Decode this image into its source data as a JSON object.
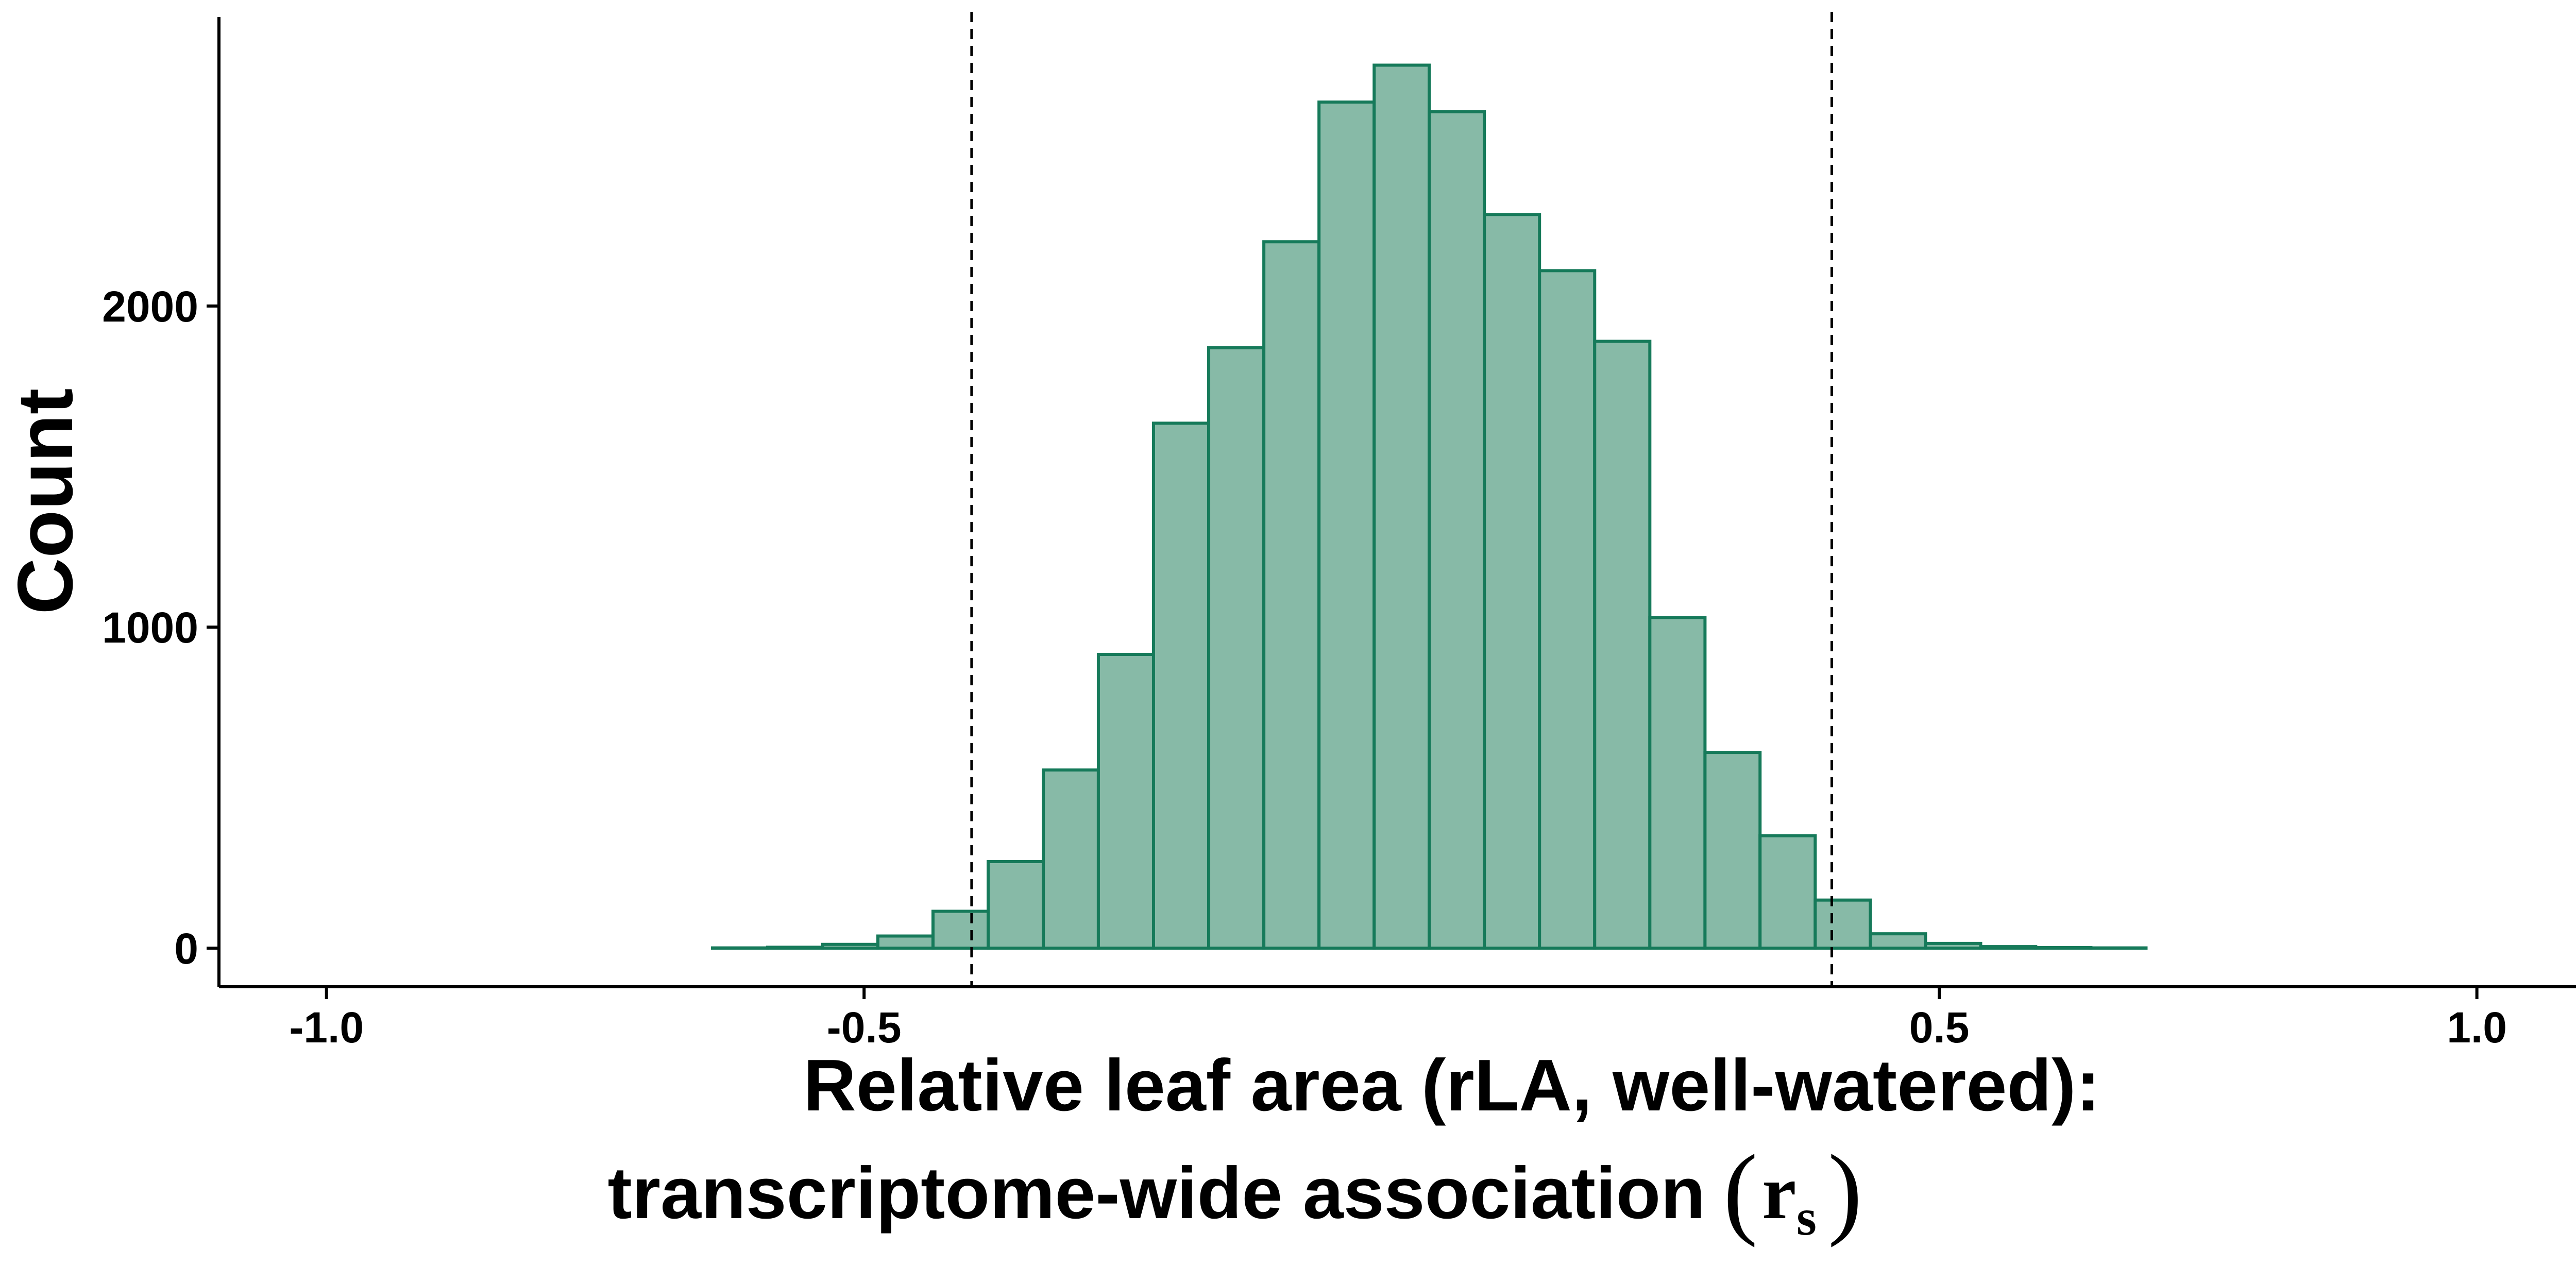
{
  "chart_data": {
    "type": "bar",
    "title": "",
    "xlabel": "Relative leaf area (rLA, well-watered):",
    "xlabel_line2": "transcriptome-wide association",
    "xlabel_symbol_main": "r",
    "xlabel_symbol_sub": "s",
    "ylabel": "Count",
    "xlim": [
      -1.1,
      1.2
    ],
    "ylim": [
      -120,
      2900
    ],
    "x_ticks": [
      -1.0,
      -0.5,
      0.5,
      1.0
    ],
    "x_tick_labels": [
      "-1.0",
      "-0.5",
      "0.5",
      "1.0"
    ],
    "y_ticks": [
      0,
      1000,
      2000
    ],
    "y_tick_labels": [
      "0",
      "1000",
      "2000"
    ],
    "bin_width": 0.05128,
    "bins": [
      {
        "x0": -1.0,
        "x1": -0.9487,
        "count": 0
      },
      {
        "x0": -0.9487,
        "x1": -0.8974,
        "count": 0
      },
      {
        "x0": -0.8974,
        "x1": -0.8462,
        "count": 0
      },
      {
        "x0": -0.8462,
        "x1": -0.7949,
        "count": 0
      },
      {
        "x0": -0.7949,
        "x1": -0.7436,
        "count": 0
      },
      {
        "x0": -0.7436,
        "x1": -0.6923,
        "count": 0
      },
      {
        "x0": -0.6923,
        "x1": -0.641,
        "count": 0
      },
      {
        "x0": -0.641,
        "x1": -0.5897,
        "count": 1
      },
      {
        "x0": -0.5897,
        "x1": -0.5385,
        "count": 3
      },
      {
        "x0": -0.5385,
        "x1": -0.4872,
        "count": 12
      },
      {
        "x0": -0.4872,
        "x1": -0.4359,
        "count": 38
      },
      {
        "x0": -0.4359,
        "x1": -0.3846,
        "count": 115
      },
      {
        "x0": -0.3846,
        "x1": -0.3333,
        "count": 270
      },
      {
        "x0": -0.3333,
        "x1": -0.2821,
        "count": 555
      },
      {
        "x0": -0.2821,
        "x1": -0.2308,
        "count": 915
      },
      {
        "x0": -0.2308,
        "x1": -0.1795,
        "count": 1635
      },
      {
        "x0": -0.1795,
        "x1": -0.1282,
        "count": 1870
      },
      {
        "x0": -0.1282,
        "x1": -0.0769,
        "count": 2200
      },
      {
        "x0": -0.0769,
        "x1": -0.0256,
        "count": 2635
      },
      {
        "x0": -0.0256,
        "x1": 0.0256,
        "count": 2750
      },
      {
        "x0": 0.0256,
        "x1": 0.0769,
        "count": 2605
      },
      {
        "x0": 0.0769,
        "x1": 0.1282,
        "count": 2285
      },
      {
        "x0": 0.1282,
        "x1": 0.1795,
        "count": 2110
      },
      {
        "x0": 0.1795,
        "x1": 0.2308,
        "count": 1890
      },
      {
        "x0": 0.2308,
        "x1": 0.2821,
        "count": 1030
      },
      {
        "x0": 0.2821,
        "x1": 0.3333,
        "count": 610
      },
      {
        "x0": 0.3333,
        "x1": 0.3846,
        "count": 350
      },
      {
        "x0": 0.3846,
        "x1": 0.4359,
        "count": 150
      },
      {
        "x0": 0.4359,
        "x1": 0.4872,
        "count": 45
      },
      {
        "x0": 0.4872,
        "x1": 0.5385,
        "count": 15
      },
      {
        "x0": 0.5385,
        "x1": 0.5897,
        "count": 5
      },
      {
        "x0": 0.5897,
        "x1": 0.641,
        "count": 2
      },
      {
        "x0": 0.641,
        "x1": 0.6923,
        "count": 1
      },
      {
        "x0": 0.6923,
        "x1": 0.7436,
        "count": 0
      },
      {
        "x0": 0.7436,
        "x1": 0.7949,
        "count": 0
      },
      {
        "x0": 0.7949,
        "x1": 0.8462,
        "count": 0
      },
      {
        "x0": 0.8462,
        "x1": 0.8974,
        "count": 0
      },
      {
        "x0": 0.8974,
        "x1": 0.9487,
        "count": 0
      },
      {
        "x0": 0.9487,
        "x1": 1.0,
        "count": 0
      }
    ],
    "reference_lines_x": [
      -0.4,
      0.4
    ],
    "reference_line_style": "dashed",
    "grid": false,
    "legend": "none",
    "colors": {
      "bar_fill": "#87BAA7",
      "bar_stroke": "#167A5A",
      "reference_line": "#000000",
      "axis": "#000000"
    }
  }
}
